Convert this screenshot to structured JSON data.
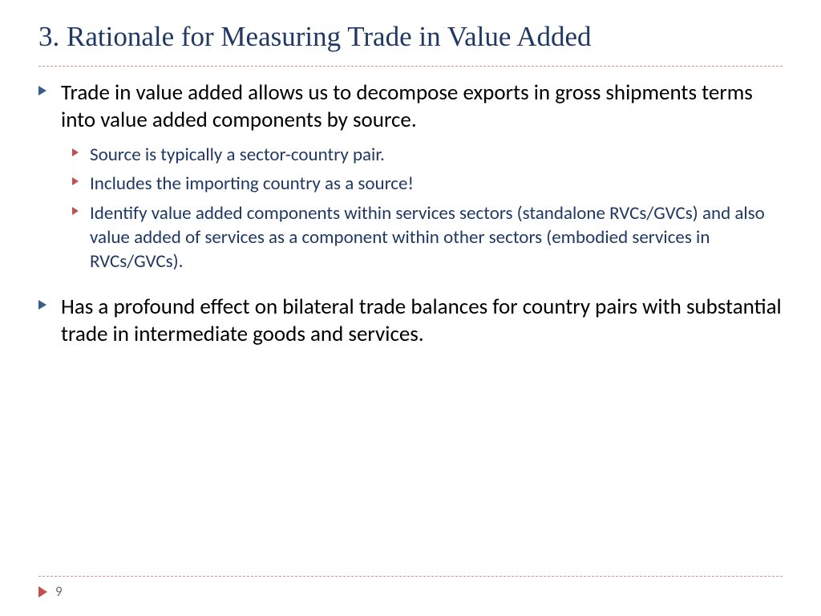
{
  "colors": {
    "title": "#1f3864",
    "divider": "#d89494",
    "bullet_l1": "#385d8a",
    "bullet_l2": "#c0504d",
    "text_l1": "#000000",
    "text_l2": "#1f3864",
    "page_bullet": "#c0504d",
    "page_num": "#6b6b6b"
  },
  "title": "3. Rationale for Measuring Trade in Value Added",
  "bullets": {
    "b1": "Trade in value added allows us to decompose exports in gross shipments terms into value added components by source.",
    "b1_sub": {
      "s1": "Source is typically a sector-country pair.",
      "s2": "Includes the importing country as a source!",
      "s3": "Identify value added components within services sectors (standalone RVCs/GVCs) and also value added of services as a component within other sectors (embodied services in RVCs/GVCs)."
    },
    "b2": "Has a profound effect on bilateral trade balances for country pairs with substantial trade in intermediate goods and services."
  },
  "page_number": "9"
}
